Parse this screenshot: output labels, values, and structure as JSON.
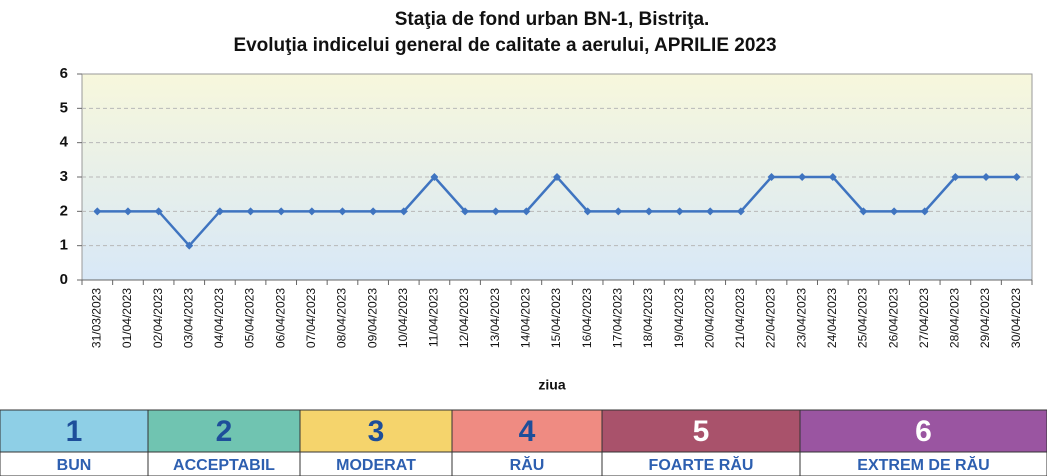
{
  "chart_data": {
    "type": "line",
    "title": [
      "Staţia de fond urban BN-1, Bistriţa.",
      "Evoluţia indicelui general de calitate a aerului, APRILIE 2023"
    ],
    "x_label": "ziua",
    "categories": [
      "31/03/2023",
      "01/04/2023",
      "02/04/2023",
      "03/04/2023",
      "04/04/2023",
      "05/04/2023",
      "06/04/2023",
      "07/04/2023",
      "08/04/2023",
      "09/04/2023",
      "10/04/2023",
      "11/04/2023",
      "12/04/2023",
      "13/04/2023",
      "14/04/2023",
      "15/04/2023",
      "16/04/2023",
      "17/04/2023",
      "18/04/2023",
      "19/04/2023",
      "20/04/2023",
      "21/04/2023",
      "22/04/2023",
      "23/04/2023",
      "24/04/2023",
      "25/04/2023",
      "26/04/2023",
      "27/04/2023",
      "28/04/2023",
      "29/04/2023",
      "30/04/2023"
    ],
    "values": [
      2,
      2,
      2,
      1,
      2,
      2,
      2,
      2,
      2,
      2,
      2,
      3,
      2,
      2,
      2,
      3,
      2,
      2,
      2,
      2,
      2,
      2,
      3,
      3,
      3,
      2,
      2,
      2,
      3,
      3,
      3
    ],
    "color": "#3f74c0",
    "ylim": [
      0,
      6
    ],
    "yticks": [
      0,
      1,
      2,
      3,
      4,
      5,
      6
    ],
    "grid": true
  },
  "index_scale": [
    {
      "level": "1",
      "label": "BUN",
      "color": "#8ecfe6",
      "text_color": "#1d4e9a"
    },
    {
      "level": "2",
      "label": "ACCEPTABIL",
      "color": "#70c4b1",
      "text_color": "#1d4e9a"
    },
    {
      "level": "3",
      "label": "MODERAT",
      "color": "#f5d46c",
      "text_color": "#1d4e9a"
    },
    {
      "level": "4",
      "label": "RĂU",
      "color": "#ef8b82",
      "text_color": "#1d4e9a"
    },
    {
      "level": "5",
      "label": "FOARTE RĂU",
      "color": "#a9526b",
      "text_color": "#ffffff"
    },
    {
      "level": "6",
      "label": "EXTREM DE RĂU",
      "color": "#9a55a1",
      "text_color": "#ffffff"
    }
  ]
}
